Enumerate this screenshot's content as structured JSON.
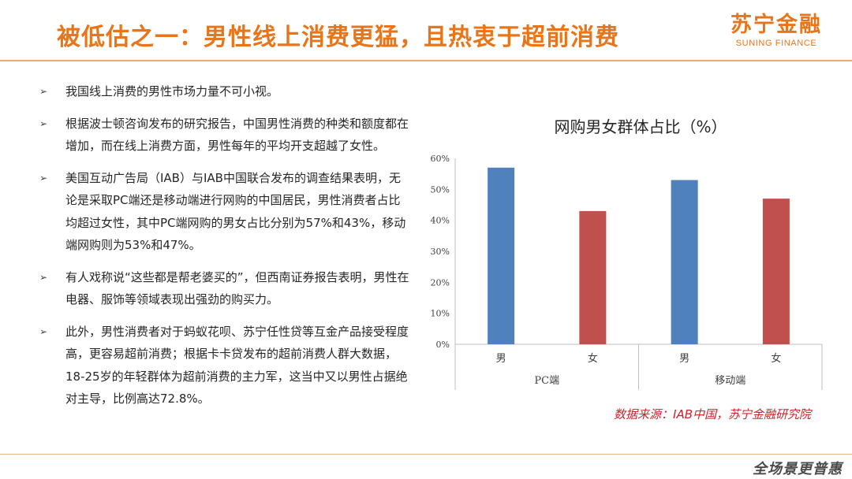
{
  "header": {
    "title": "被低估之一：男性线上消费更猛，且热衷于超前消费",
    "logo_cn": "苏宁金融",
    "logo_en": "SUNING FINANCE"
  },
  "bullets": [
    "我国线上消费的男性市场力量不可小视。",
    "根据波士顿咨询发布的研究报告，中国男性消费的种类和额度都在增加，而在线上消费方面，男性每年的平均开支超越了女性。",
    "美国互动广告局（IAB）与IAB中国联合发布的调查结果表明，无论是采取PC端还是移动端进行网购的中国居民，男性消费者占比均超过女性，其中PC端网购的男女占比分别为57%和43%，移动端网购则为53%和47%。",
    "有人戏称说“这些都是帮老婆买的”，但西南证券报告表明，男性在电器、服饰等领域表现出强劲的购买力。",
    "此外，男性消费者对于蚂蚁花呗、苏宁任性贷等互金产品接受程度高，更容易超前消费；根据卡卡贷发布的超前消费人群大数据，18-25岁的年轻群体为超前消费的主力军，这当中又以男性占据绝对主导，比例高达72.8%。"
  ],
  "bullet_marker": "➢",
  "chart_data": {
    "type": "bar",
    "title": "网购男女群体占比（%）",
    "groups": [
      {
        "label": "PC端",
        "categories": [
          "男",
          "女"
        ],
        "values": [
          57,
          43
        ]
      },
      {
        "label": "移动端",
        "categories": [
          "男",
          "女"
        ],
        "values": [
          53,
          47
        ]
      }
    ],
    "bar_colors": [
      "#4f81bd",
      "#c0504d",
      "#4f81bd",
      "#c0504d"
    ],
    "ylim": [
      0,
      60
    ],
    "yticks": [
      0,
      10,
      20,
      30,
      40,
      50,
      60
    ],
    "ytick_labels": [
      "0%",
      "10%",
      "20%",
      "30%",
      "40%",
      "50%",
      "60%"
    ],
    "grid": false,
    "legend": "none"
  },
  "source": "数据来源：IAB中国，苏宁金融研究院",
  "footer_logo": "全场景更普惠",
  "colors": {
    "accent": "#e8751a",
    "source": "#d0222c"
  }
}
